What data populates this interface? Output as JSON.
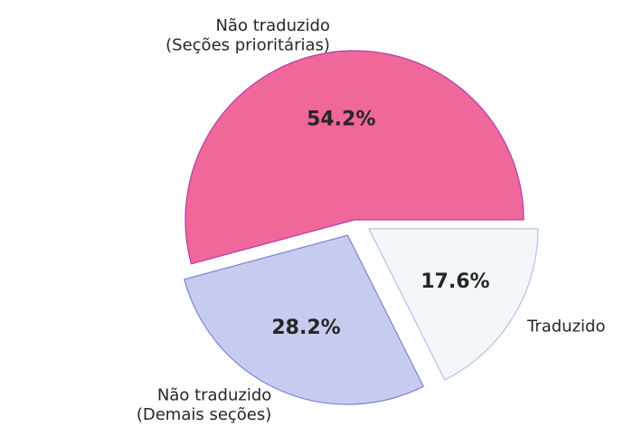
{
  "chart_data": {
    "type": "pie",
    "title": "",
    "slices": [
      {
        "label_lines": [
          "Traduzido"
        ],
        "value": 17.6,
        "percent_label": "17.6%",
        "fill": "#f3f7fa",
        "stroke": "#b3bff0",
        "exploded": true
      },
      {
        "label_lines": [
          "Não traduzido",
          "(Demais seções)"
        ],
        "value": 28.2,
        "percent_label": "28.2%",
        "fill": "#c8cbf0",
        "stroke": "#7b83d4",
        "exploded": true
      },
      {
        "label_lines": [
          "Não traduzido",
          "(Seções prioritárias)"
        ],
        "value": 54.2,
        "percent_label": "54.2%",
        "fill": "#f06899",
        "stroke": "#b03cb0",
        "exploded": false
      }
    ],
    "start_angle_deg": 0,
    "direction": "clockwise",
    "legend": "none"
  }
}
